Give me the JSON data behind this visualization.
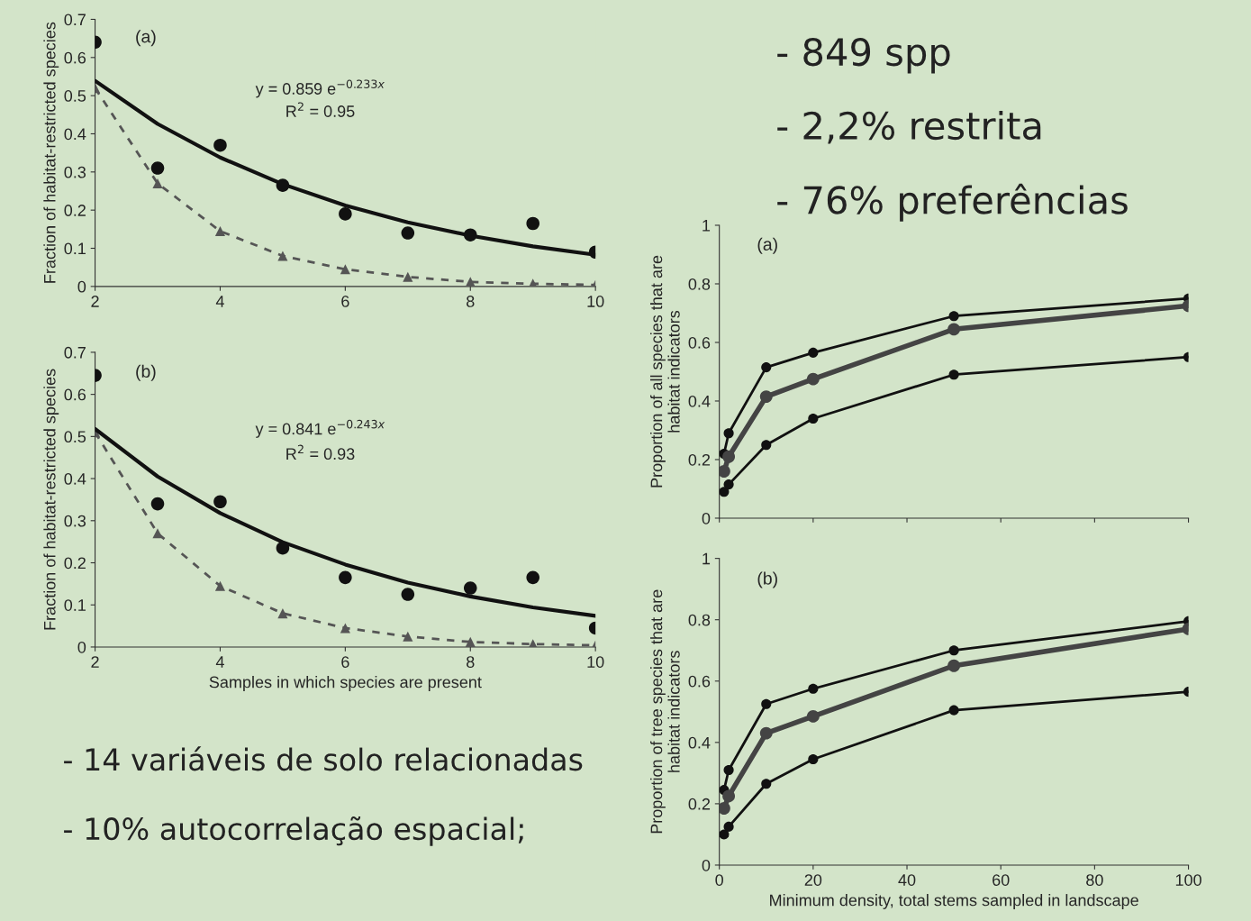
{
  "chart_data": [
    {
      "type": "line",
      "ylabel": "Fraction of habitat-restricted species",
      "annotations": [
        "(a)",
        "y = 0.859 e$^{−0.233x}$",
        "R$^{2}$ = 0.95"
      ],
      "x": [
        2,
        3,
        4,
        5,
        6,
        7,
        8,
        9,
        10
      ],
      "xlim": [
        2,
        10
      ],
      "ylim": [
        0,
        0.7
      ],
      "xticks": [
        2,
        4,
        6,
        8,
        10
      ],
      "yticks": [
        0,
        0.1,
        0.2,
        0.3,
        0.4,
        0.5,
        0.6,
        0.7
      ],
      "series": [
        {
          "type": "scatter",
          "marker": "circle",
          "color": "#111111",
          "values": [
            0.64,
            0.31,
            0.37,
            0.265,
            0.19,
            0.14,
            0.135,
            0.165,
            0.09
          ]
        },
        {
          "type": "line",
          "marker": "triangle",
          "line_style": "dashed",
          "color": "#555555",
          "values": [
            0.52,
            0.27,
            0.145,
            0.08,
            0.045,
            0.025,
            0.012,
            0.007,
            0.004
          ]
        },
        {
          "type": "line",
          "marker": "none",
          "line_style": "solid",
          "color": "#111111",
          "values": [
            0.539,
            0.426,
            0.338,
            0.268,
            0.212,
            0.168,
            0.133,
            0.105,
            0.083
          ]
        }
      ]
    },
    {
      "type": "line",
      "xlabel": "Samples in which species are present",
      "ylabel": "Fraction of habitat-restricted species",
      "annotations": [
        "(b)",
        "y = 0.841 e$^{−0.243x}$",
        "R$^{2}$ = 0.93"
      ],
      "x": [
        2,
        3,
        4,
        5,
        6,
        7,
        8,
        9,
        10
      ],
      "xlim": [
        2,
        10
      ],
      "ylim": [
        0,
        0.7
      ],
      "xticks": [
        2,
        4,
        6,
        8,
        10
      ],
      "yticks": [
        0,
        0.1,
        0.2,
        0.3,
        0.4,
        0.5,
        0.6,
        0.7
      ],
      "series": [
        {
          "type": "scatter",
          "marker": "circle",
          "color": "#111111",
          "values": [
            0.645,
            0.34,
            0.345,
            0.235,
            0.165,
            0.125,
            0.14,
            0.165,
            0.045
          ]
        },
        {
          "type": "line",
          "marker": "triangle",
          "line_style": "dashed",
          "color": "#555555",
          "values": [
            0.51,
            0.27,
            0.145,
            0.08,
            0.045,
            0.025,
            0.012,
            0.007,
            0.004
          ]
        },
        {
          "type": "line",
          "marker": "none",
          "line_style": "solid",
          "color": "#111111",
          "values": [
            0.518,
            0.405,
            0.318,
            0.249,
            0.196,
            0.153,
            0.12,
            0.094,
            0.074
          ]
        }
      ]
    },
    {
      "type": "line",
      "ylabel": "Proportion of all species that are\nhabitat indicators",
      "annotations": [
        "(a)"
      ],
      "tick_labels": "y",
      "x": [
        1,
        2,
        10,
        20,
        50,
        100
      ],
      "xlim": [
        0,
        100
      ],
      "ylim": [
        0,
        1
      ],
      "marker": "circle",
      "line_style": "solid",
      "xticks": [
        {
          "value": 0,
          "label": null
        },
        {
          "value": 20,
          "label": null
        },
        {
          "value": 40,
          "label": null
        },
        {
          "value": 60,
          "label": null
        },
        {
          "value": 80,
          "label": null
        },
        {
          "value": 100,
          "label": null
        }
      ],
      "yticks": [
        0,
        0.2,
        0.4,
        0.6,
        0.8,
        1
      ],
      "series": [
        {
          "color": "#111111",
          "values": [
            0.22,
            0.29,
            0.515,
            0.565,
            0.69,
            0.75
          ]
        },
        {
          "color": "#444444",
          "values": [
            0.16,
            0.21,
            0.415,
            0.475,
            0.645,
            0.725
          ]
        },
        {
          "color": "#111111",
          "values": [
            0.09,
            0.115,
            0.25,
            0.34,
            0.49,
            0.55
          ]
        }
      ]
    },
    {
      "type": "line",
      "xlabel": "Minimum density, total stems sampled in landscape",
      "ylabel": "Proportion of tree species that are\nhabitat indicators",
      "annotations": [
        "(b)"
      ],
      "x": [
        1,
        2,
        10,
        20,
        50,
        100
      ],
      "xlim": [
        0,
        100
      ],
      "ylim": [
        0,
        1
      ],
      "marker": "circle",
      "line_style": "solid",
      "xticks": [
        0,
        20,
        40,
        60,
        80,
        100
      ],
      "yticks": [
        0,
        0.2,
        0.4,
        0.6,
        0.8,
        1
      ],
      "series": [
        {
          "color": "#111111",
          "values": [
            0.245,
            0.31,
            0.525,
            0.575,
            0.7,
            0.795
          ]
        },
        {
          "color": "#444444",
          "values": [
            0.185,
            0.225,
            0.43,
            0.485,
            0.65,
            0.77
          ]
        },
        {
          "color": "#111111",
          "values": [
            0.1,
            0.125,
            0.265,
            0.345,
            0.505,
            0.565
          ]
        }
      ]
    },
    {
      "type": "other",
      "annotations": [
        "- 849 spp",
        "- 2,2% restrita",
        "- 76% preferências"
      ]
    },
    {
      "type": "other",
      "annotations": [
        "- 14 variáveis de solo relacionadas",
        "- 10% autocorrelação espacial;"
      ]
    }
  ]
}
